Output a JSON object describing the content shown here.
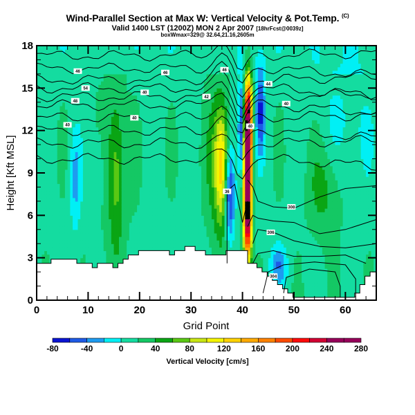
{
  "chart_data": {
    "type": "heatmap",
    "title": "Wind-Parallel Section at Max W: Vertical Velocity & Pot.Temp.",
    "title_mark": "(C)",
    "subtitle_main": "Valid 1400 LST (1200Z) MON 2 Apr 2007",
    "subtitle_fcst": "[18hrFcst@0039z]",
    "subtitle2": "boxWmax=329@ 32.64,21.16,2605m",
    "xlabel": "Grid Point",
    "ylabel": "Height [Kft MSL]",
    "xlim": [
      0,
      66
    ],
    "ylim": [
      0,
      18
    ],
    "x_ticks": [
      "0",
      "10",
      "20",
      "30",
      "40",
      "50",
      "60"
    ],
    "y_ticks": [
      "0",
      "3",
      "6",
      "9",
      "12",
      "15",
      "18"
    ],
    "colorbar": {
      "title": "Vertical Velocity [cm/s]",
      "levels": [
        -80,
        -60,
        -40,
        -20,
        0,
        20,
        40,
        60,
        80,
        100,
        120,
        140,
        160,
        180,
        200,
        220,
        240,
        260,
        280
      ],
      "tick_labels": [
        "-80",
        "-40",
        "0",
        "40",
        "80",
        "120",
        "160",
        "200",
        "240",
        "280"
      ],
      "colors": [
        "#0a14d2",
        "#1e5ae6",
        "#1e9bf0",
        "#00f0f5",
        "#14dca0",
        "#14c864",
        "#0aa514",
        "#5ac814",
        "#c8e614",
        "#f5f500",
        "#ffd200",
        "#ffaa00",
        "#ff8200",
        "#ff4b00",
        "#ff0a0a",
        "#d20032",
        "#96005a",
        "#000000"
      ]
    },
    "theta_contour_labels": [
      {
        "text": "46",
        "x": 8,
        "y": 16.2
      },
      {
        "text": "54",
        "x": 9.5,
        "y": 15.0
      },
      {
        "text": "48",
        "x": 7.5,
        "y": 14.1
      },
      {
        "text": "40",
        "x": 6,
        "y": 12.4
      },
      {
        "text": "46",
        "x": 25,
        "y": 16.1
      },
      {
        "text": "40",
        "x": 21,
        "y": 14.7
      },
      {
        "text": "40",
        "x": 19,
        "y": 12.9
      },
      {
        "text": "42",
        "x": 33,
        "y": 14.4
      },
      {
        "text": "46",
        "x": 36.5,
        "y": 16.3
      },
      {
        "text": "44",
        "x": 45,
        "y": 15.3
      },
      {
        "text": "40",
        "x": 48.5,
        "y": 13.9
      },
      {
        "text": "40",
        "x": 41.5,
        "y": 12.3
      },
      {
        "text": "36",
        "x": 37,
        "y": 7.7
      },
      {
        "text": "308",
        "x": 49.5,
        "y": 6.6
      },
      {
        "text": "306",
        "x": 45.5,
        "y": 4.8
      },
      {
        "text": "304",
        "x": 46,
        "y": 1.7
      }
    ],
    "max_w": 329
  }
}
